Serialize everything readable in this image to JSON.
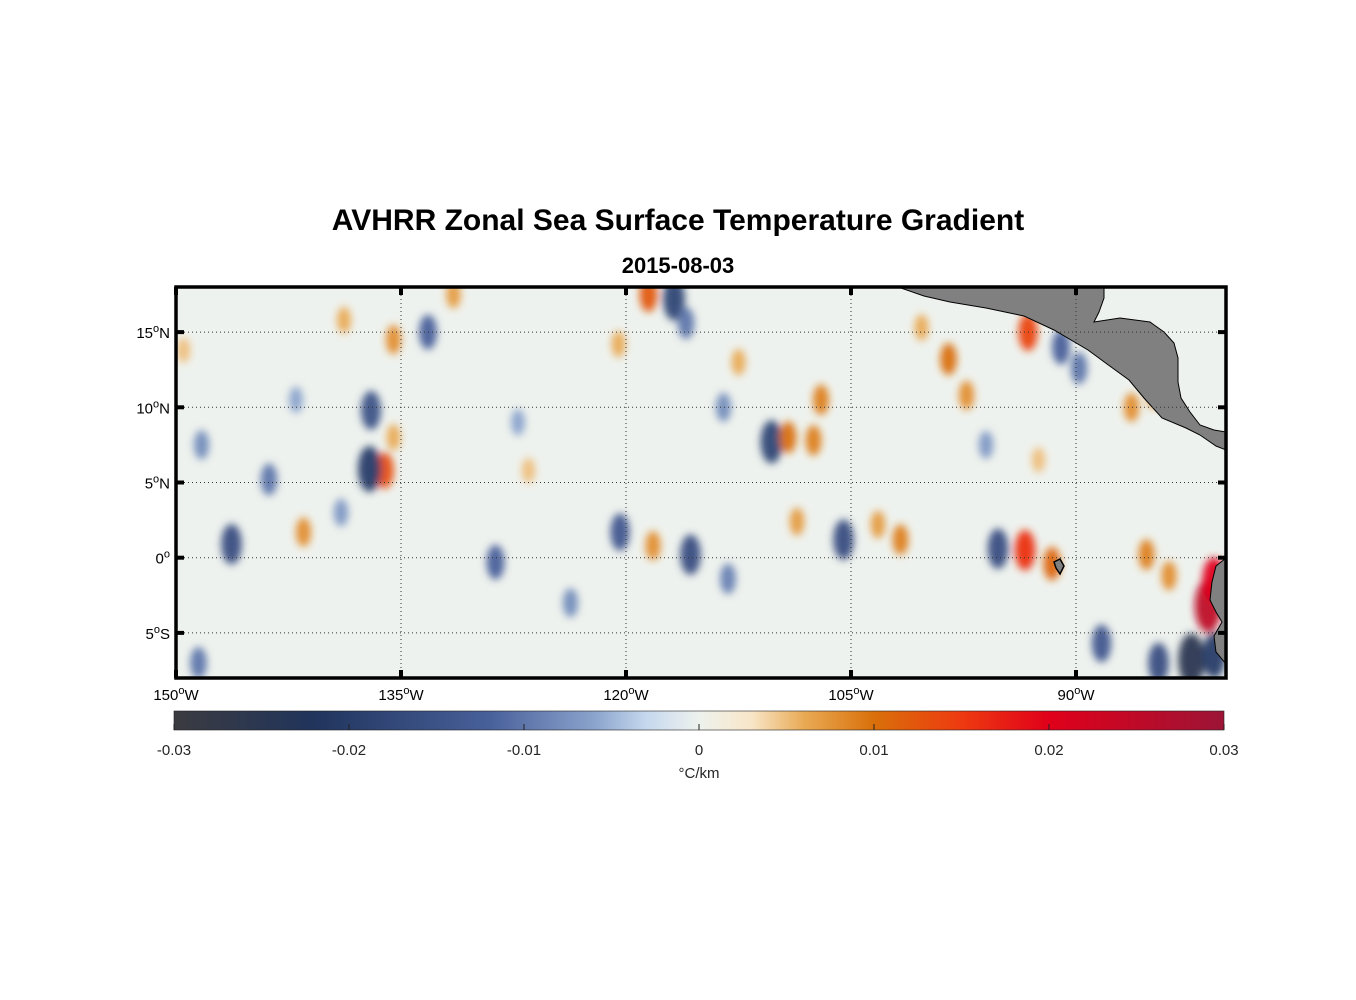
{
  "map": {
    "title": "AVHRR Zonal Sea Surface Temperature Gradient",
    "subtitle": "2015-08-03",
    "projection": "equirectangular",
    "lon_range": [
      -150,
      -80
    ],
    "lat_range": [
      -8,
      18
    ],
    "grid": "dotted",
    "land_color": "#808080",
    "lon_ticks": [
      {
        "value": -150,
        "deg": "150",
        "hemi": "W"
      },
      {
        "value": -135,
        "deg": "135",
        "hemi": "W"
      },
      {
        "value": -120,
        "deg": "120",
        "hemi": "W"
      },
      {
        "value": -105,
        "deg": "105",
        "hemi": "W"
      },
      {
        "value": -90,
        "deg": "90",
        "hemi": "W"
      }
    ],
    "lat_ticks": [
      {
        "value": 15,
        "deg": "15",
        "hemi": "N"
      },
      {
        "value": 10,
        "deg": "10",
        "hemi": "N"
      },
      {
        "value": 5,
        "deg": "5",
        "hemi": "N"
      },
      {
        "value": 0,
        "deg": "0",
        "hemi": ""
      },
      {
        "value": -5,
        "deg": "5",
        "hemi": "S"
      }
    ]
  },
  "colorbar": {
    "label": "°C/km",
    "range": [
      -0.03,
      0.03
    ],
    "ticks": [
      {
        "value": -0.03,
        "label": "-0.03"
      },
      {
        "value": -0.02,
        "label": "-0.02"
      },
      {
        "value": -0.01,
        "label": "-0.01"
      },
      {
        "value": 0,
        "label": "0"
      },
      {
        "value": 0.01,
        "label": "0.01"
      },
      {
        "value": 0.02,
        "label": "0.02"
      },
      {
        "value": 0.03,
        "label": "0.03"
      }
    ],
    "colormap": [
      {
        "value": -0.03,
        "color": "#3b3b40"
      },
      {
        "value": -0.022,
        "color": "#20345c"
      },
      {
        "value": -0.012,
        "color": "#48609a"
      },
      {
        "value": -0.006,
        "color": "#8aa3cc"
      },
      {
        "value": -0.003,
        "color": "#c6d8ee"
      },
      {
        "value": 0,
        "color": "#eef2ee"
      },
      {
        "value": 0.003,
        "color": "#f8e6c8"
      },
      {
        "value": 0.006,
        "color": "#e9aa55"
      },
      {
        "value": 0.01,
        "color": "#d9700a"
      },
      {
        "value": 0.015,
        "color": "#ee3a10"
      },
      {
        "value": 0.02,
        "color": "#e0001a"
      },
      {
        "value": 0.03,
        "color": "#9c1436"
      }
    ]
  },
  "anomalies": [
    {
      "lon": -136.1,
      "lat": 5.8,
      "value": 0.013
    },
    {
      "lon": -137.1,
      "lat": 5.9,
      "value": -0.02
    },
    {
      "lon": -137.0,
      "lat": 9.8,
      "value": -0.015
    },
    {
      "lon": -135.5,
      "lat": 8.0,
      "value": 0.006
    },
    {
      "lon": -146.3,
      "lat": 0.9,
      "value": -0.016
    },
    {
      "lon": -141.5,
      "lat": 1.7,
      "value": 0.008
    },
    {
      "lon": -135.5,
      "lat": 14.5,
      "value": 0.008
    },
    {
      "lon": -138.8,
      "lat": 15.8,
      "value": 0.006
    },
    {
      "lon": -131.5,
      "lat": 17.5,
      "value": 0.007
    },
    {
      "lon": -118.5,
      "lat": 17.5,
      "value": 0.012
    },
    {
      "lon": -116.8,
      "lat": 17.2,
      "value": -0.018
    },
    {
      "lon": -116.0,
      "lat": 15.6,
      "value": -0.01
    },
    {
      "lon": -110.3,
      "lat": 7.7,
      "value": -0.018
    },
    {
      "lon": -109.2,
      "lat": 8.0,
      "value": 0.01
    },
    {
      "lon": -107.5,
      "lat": 7.8,
      "value": 0.009
    },
    {
      "lon": -107.0,
      "lat": 10.5,
      "value": 0.009
    },
    {
      "lon": -120.4,
      "lat": 1.7,
      "value": -0.014
    },
    {
      "lon": -118.2,
      "lat": 0.8,
      "value": 0.008
    },
    {
      "lon": -115.7,
      "lat": 0.2,
      "value": -0.016
    },
    {
      "lon": -128.7,
      "lat": -0.3,
      "value": -0.012
    },
    {
      "lon": -108.6,
      "lat": 2.4,
      "value": 0.007
    },
    {
      "lon": -105.5,
      "lat": 1.2,
      "value": -0.016
    },
    {
      "lon": -101.7,
      "lat": 1.2,
      "value": 0.009
    },
    {
      "lon": -103.2,
      "lat": 2.2,
      "value": 0.007
    },
    {
      "lon": -95.2,
      "lat": 0.6,
      "value": -0.016
    },
    {
      "lon": -93.4,
      "lat": 0.5,
      "value": 0.016
    },
    {
      "lon": -91.6,
      "lat": -0.4,
      "value": 0.011
    },
    {
      "lon": -93.2,
      "lat": 15.0,
      "value": 0.014
    },
    {
      "lon": -91.0,
      "lat": 14.0,
      "value": -0.012
    },
    {
      "lon": -89.8,
      "lat": 12.6,
      "value": -0.01
    },
    {
      "lon": -98.5,
      "lat": 13.2,
      "value": 0.01
    },
    {
      "lon": -97.3,
      "lat": 10.8,
      "value": 0.008
    },
    {
      "lon": -85.3,
      "lat": 0.2,
      "value": 0.009
    },
    {
      "lon": -83.8,
      "lat": -1.2,
      "value": 0.008
    },
    {
      "lon": -81.2,
      "lat": -3.2,
      "value": 0.025
    },
    {
      "lon": -80.8,
      "lat": -1.5,
      "value": 0.02
    },
    {
      "lon": -82.3,
      "lat": -6.8,
      "value": -0.025
    },
    {
      "lon": -80.8,
      "lat": -6.5,
      "value": -0.02
    },
    {
      "lon": -84.5,
      "lat": -7.0,
      "value": -0.016
    },
    {
      "lon": -88.3,
      "lat": -5.7,
      "value": -0.014
    },
    {
      "lon": -86.3,
      "lat": 10.0,
      "value": 0.008
    },
    {
      "lon": -84.8,
      "lat": 10.8,
      "value": 0.007
    },
    {
      "lon": -133.2,
      "lat": 15.0,
      "value": -0.012
    },
    {
      "lon": -143.8,
      "lat": 5.2,
      "value": -0.01
    },
    {
      "lon": -148.3,
      "lat": 7.5,
      "value": -0.008
    },
    {
      "lon": -149.5,
      "lat": 13.8,
      "value": 0.005
    },
    {
      "lon": -127.2,
      "lat": 9.0,
      "value": -0.006
    },
    {
      "lon": -126.5,
      "lat": 5.8,
      "value": 0.005
    },
    {
      "lon": -113.5,
      "lat": 10.0,
      "value": -0.008
    },
    {
      "lon": -112.5,
      "lat": 13.0,
      "value": 0.006
    },
    {
      "lon": -100.3,
      "lat": 15.3,
      "value": 0.006
    },
    {
      "lon": -96.0,
      "lat": 7.5,
      "value": -0.007
    },
    {
      "lon": -92.5,
      "lat": 6.5,
      "value": 0.005
    },
    {
      "lon": -148.5,
      "lat": -7.0,
      "value": -0.01
    },
    {
      "lon": -123.7,
      "lat": -3.0,
      "value": -0.008
    },
    {
      "lon": -113.2,
      "lat": -1.4,
      "value": -0.009
    },
    {
      "lon": -139.0,
      "lat": 3.0,
      "value": -0.007
    },
    {
      "lon": -142.0,
      "lat": 10.5,
      "value": -0.006
    },
    {
      "lon": -120.5,
      "lat": 14.2,
      "value": 0.006
    }
  ]
}
